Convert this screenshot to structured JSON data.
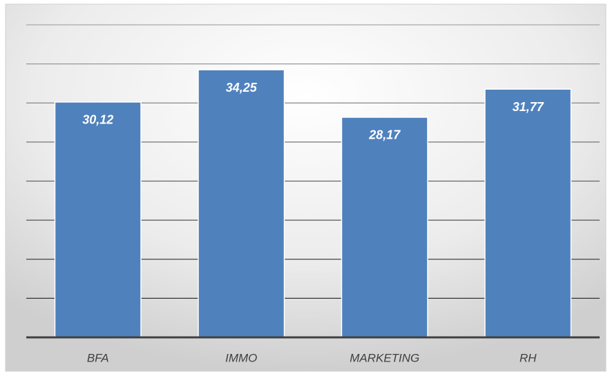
{
  "chart_data": {
    "type": "bar",
    "categories": [
      "BFA",
      "IMMO",
      "MARKETING",
      "RH"
    ],
    "values": [
      30.12,
      34.25,
      28.17,
      31.77
    ],
    "value_labels": [
      "30,12",
      "34,25",
      "28,17",
      "31,77"
    ],
    "color": "#4f81bd",
    "ylim": [
      0,
      40
    ],
    "yticks": [
      0,
      5,
      10,
      15,
      20,
      25,
      30,
      35,
      40
    ],
    "grid": true
  }
}
